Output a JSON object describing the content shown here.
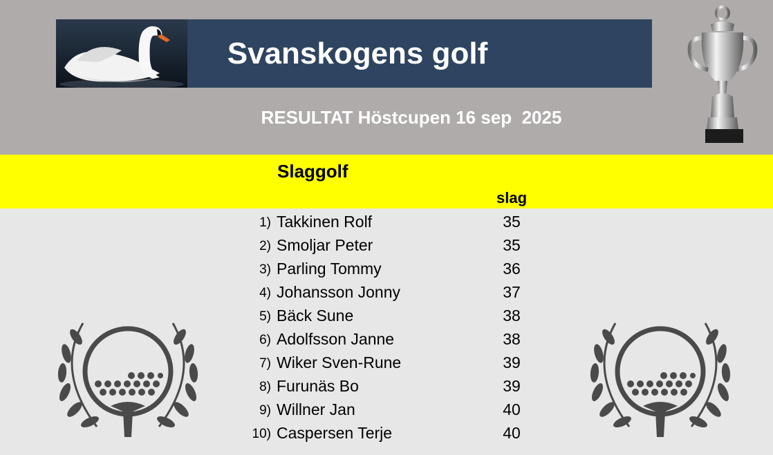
{
  "header": {
    "title": "Svanskogens golf",
    "subtitle": "RESULTAT Höstcupen 16 sep  2025"
  },
  "section": {
    "title": "Slaggolf",
    "score_header": "slag"
  },
  "results": [
    {
      "rank": "1)",
      "name": "Takkinen Rolf",
      "score": "35"
    },
    {
      "rank": "2)",
      "name": "Smoljar Peter",
      "score": "35"
    },
    {
      "rank": "3)",
      "name": "Parling Tommy",
      "score": "36"
    },
    {
      "rank": "4)",
      "name": "Johansson Jonny",
      "score": "37"
    },
    {
      "rank": "5)",
      "name": "Bäck Sune",
      "score": "38"
    },
    {
      "rank": "6)",
      "name": "Adolfsson Janne",
      "score": "38"
    },
    {
      "rank": "7)",
      "name": "Wiker Sven-Rune",
      "score": "39"
    },
    {
      "rank": "8)",
      "name": "Furunäs Bo",
      "score": "39"
    },
    {
      "rank": "9)",
      "name": "Willner Jan",
      "score": "40"
    },
    {
      "rank": "10)",
      "name": "Caspersen Terje",
      "score": "40"
    }
  ],
  "images": {
    "banner_photo": "swan-image",
    "trophy": "trophy-icon",
    "emblem": "golf-ball-laurel-icon"
  },
  "colors": {
    "top_band": "#afabab",
    "banner": "#2e4460",
    "highlight": "#ffff00",
    "background": "#e7e7e7"
  }
}
